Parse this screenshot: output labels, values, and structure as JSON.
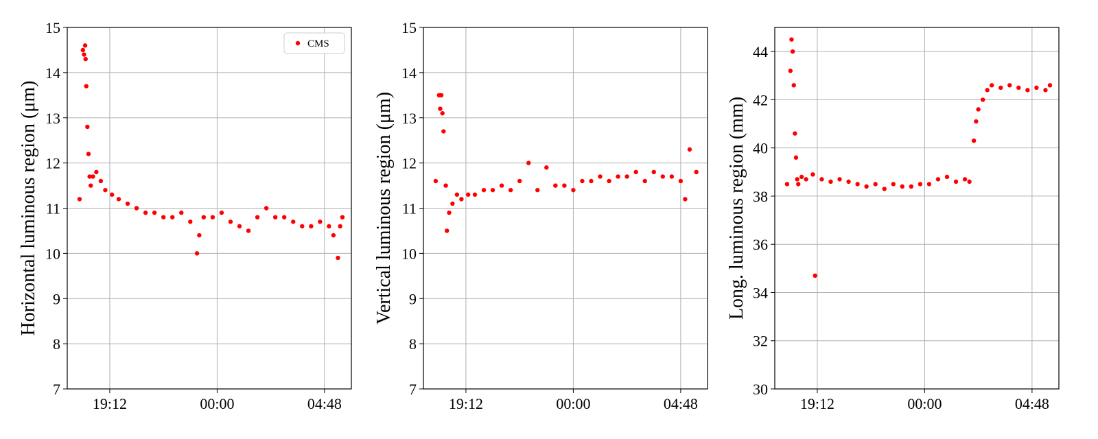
{
  "chart_data": [
    {
      "type": "scatter",
      "ylabel": "Horizontal luminous region (μm)",
      "xlabel": "",
      "ylim": [
        7,
        15
      ],
      "yticks": [
        7,
        8,
        9,
        10,
        11,
        12,
        13,
        14,
        15
      ],
      "x_tick_labels": [
        "19:12",
        "00:00",
        "04:48"
      ],
      "x_ticks_hours": [
        19.2,
        24.0,
        28.8
      ],
      "xlim_hours": [
        17.3,
        30.0
      ],
      "grid": true,
      "legend": {
        "placement": "top-right",
        "entries": [
          "CMS"
        ]
      },
      "series": [
        {
          "name": "CMS",
          "color": "#ff0000",
          "x_hours": [
            17.85,
            18.0,
            18.05,
            18.1,
            18.12,
            18.15,
            18.2,
            18.25,
            18.3,
            18.35,
            18.45,
            18.6,
            18.8,
            19.0,
            19.3,
            19.6,
            20.0,
            20.4,
            20.8,
            21.2,
            21.6,
            22.0,
            22.4,
            22.8,
            23.1,
            23.2,
            23.4,
            23.8,
            24.2,
            24.6,
            25.0,
            25.4,
            25.8,
            26.2,
            26.6,
            27.0,
            27.4,
            27.8,
            28.2,
            28.6,
            29.0,
            29.2,
            29.4,
            29.5,
            29.6
          ],
          "y": [
            11.2,
            14.5,
            14.4,
            14.6,
            14.3,
            13.7,
            12.8,
            12.2,
            11.7,
            11.5,
            11.7,
            11.8,
            11.6,
            11.4,
            11.3,
            11.2,
            11.1,
            11.0,
            10.9,
            10.9,
            10.8,
            10.8,
            10.9,
            10.7,
            10.0,
            10.4,
            10.8,
            10.8,
            10.9,
            10.7,
            10.6,
            10.5,
            10.8,
            11.0,
            10.8,
            10.8,
            10.7,
            10.6,
            10.6,
            10.7,
            10.6,
            10.4,
            9.9,
            10.6,
            10.8
          ]
        }
      ]
    },
    {
      "type": "scatter",
      "ylabel": "Vertical luminous region (μm)",
      "xlabel": "",
      "ylim": [
        7,
        15
      ],
      "yticks": [
        7,
        8,
        9,
        10,
        11,
        12,
        13,
        14,
        15
      ],
      "x_tick_labels": [
        "19:12",
        "00:00",
        "04:48"
      ],
      "x_ticks_hours": [
        19.2,
        24.0,
        28.8
      ],
      "xlim_hours": [
        17.3,
        30.0
      ],
      "grid": true,
      "series": [
        {
          "color": "#ff0000",
          "x_hours": [
            17.85,
            18.0,
            18.05,
            18.1,
            18.15,
            18.2,
            18.3,
            18.35,
            18.45,
            18.6,
            18.8,
            19.0,
            19.3,
            19.6,
            20.0,
            20.4,
            20.8,
            21.2,
            21.6,
            22.0,
            22.4,
            22.8,
            23.2,
            23.6,
            24.0,
            24.4,
            24.8,
            25.2,
            25.6,
            26.0,
            26.4,
            26.8,
            27.2,
            27.6,
            28.0,
            28.4,
            28.8,
            29.0,
            29.2,
            29.5
          ],
          "y": [
            11.6,
            13.5,
            13.2,
            13.5,
            13.1,
            12.7,
            11.5,
            10.5,
            10.9,
            11.1,
            11.3,
            11.2,
            11.3,
            11.3,
            11.4,
            11.4,
            11.5,
            11.4,
            11.6,
            12.0,
            11.4,
            11.9,
            11.5,
            11.5,
            11.4,
            11.6,
            11.6,
            11.7,
            11.6,
            11.7,
            11.7,
            11.8,
            11.6,
            11.8,
            11.7,
            11.7,
            11.6,
            11.2,
            12.3,
            11.8
          ]
        }
      ]
    },
    {
      "type": "scatter",
      "ylabel": "Long. luminous region (mm)",
      "xlabel": "",
      "ylim": [
        30,
        45
      ],
      "yticks": [
        30,
        32,
        34,
        36,
        38,
        40,
        42,
        44
      ],
      "x_tick_labels": [
        "19:12",
        "00:00",
        "04:48"
      ],
      "x_ticks_hours": [
        19.2,
        24.0,
        28.8
      ],
      "xlim_hours": [
        17.3,
        30.0
      ],
      "grid": true,
      "series": [
        {
          "color": "#ff0000",
          "x_hours": [
            17.85,
            18.0,
            18.05,
            18.1,
            18.15,
            18.2,
            18.25,
            18.3,
            18.35,
            18.5,
            18.7,
            19.0,
            19.1,
            19.4,
            19.8,
            20.2,
            20.6,
            21.0,
            21.4,
            21.8,
            22.2,
            22.6,
            23.0,
            23.4,
            23.8,
            24.2,
            24.6,
            25.0,
            25.4,
            25.8,
            26.0,
            26.2,
            26.3,
            26.4,
            26.6,
            26.8,
            27.0,
            27.4,
            27.8,
            28.2,
            28.6,
            29.0,
            29.4,
            29.6
          ],
          "y": [
            38.5,
            43.2,
            44.5,
            44.0,
            42.6,
            40.6,
            39.6,
            38.7,
            38.5,
            38.8,
            38.7,
            38.9,
            34.7,
            38.7,
            38.6,
            38.7,
            38.6,
            38.5,
            38.4,
            38.5,
            38.3,
            38.5,
            38.4,
            38.4,
            38.5,
            38.5,
            38.7,
            38.8,
            38.6,
            38.7,
            38.6,
            40.3,
            41.1,
            41.6,
            42.0,
            42.4,
            42.6,
            42.5,
            42.6,
            42.5,
            42.4,
            42.5,
            42.4,
            42.6
          ]
        }
      ]
    }
  ]
}
